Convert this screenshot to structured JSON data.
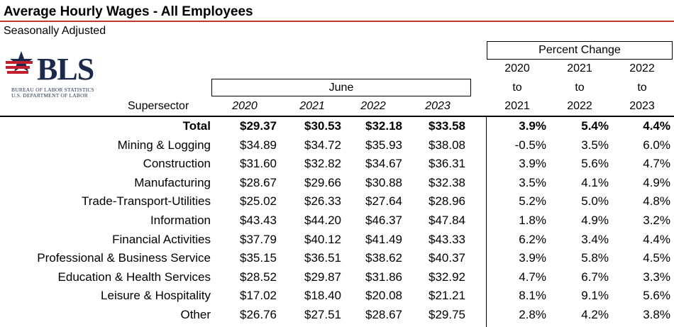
{
  "title": "Average Hourly Wages - All Employees",
  "subtitle": "Seasonally Adjusted",
  "logo": {
    "name": "BLS",
    "line1": "BUREAU OF LABOR STATISTICS",
    "line2": "U.S. DEPARTMENT OF LABOR",
    "colors": {
      "red": "#c0202e",
      "navy": "#1b2a4a"
    }
  },
  "headers": {
    "percent_change": "Percent Change",
    "june": "June",
    "supersector": "Supersector",
    "years": [
      "2020",
      "2021",
      "2022",
      "2023"
    ],
    "changes": [
      {
        "from": "2020",
        "to_word": "to",
        "to": "2021"
      },
      {
        "from": "2021",
        "to_word": "to",
        "to": "2022"
      },
      {
        "from": "2022",
        "to_word": "to",
        "to": "2023"
      }
    ]
  },
  "rows": [
    {
      "sector": "Total",
      "bold": true,
      "wages": [
        "$29.37",
        "$30.53",
        "$32.18",
        "$33.58"
      ],
      "pct": [
        "3.9%",
        "5.4%",
        "4.4%"
      ]
    },
    {
      "sector": "Mining & Logging",
      "wages": [
        "$34.89",
        "$34.72",
        "$35.93",
        "$38.08"
      ],
      "pct": [
        "-0.5%",
        "3.5%",
        "6.0%"
      ]
    },
    {
      "sector": "Construction",
      "wages": [
        "$31.60",
        "$32.82",
        "$34.67",
        "$36.31"
      ],
      "pct": [
        "3.9%",
        "5.6%",
        "4.7%"
      ]
    },
    {
      "sector": "Manufacturing",
      "wages": [
        "$28.67",
        "$29.66",
        "$30.88",
        "$32.38"
      ],
      "pct": [
        "3.5%",
        "4.1%",
        "4.9%"
      ]
    },
    {
      "sector": "Trade-Transport-Utilities",
      "wages": [
        "$25.02",
        "$26.33",
        "$27.64",
        "$28.96"
      ],
      "pct": [
        "5.2%",
        "5.0%",
        "4.8%"
      ]
    },
    {
      "sector": "Information",
      "wages": [
        "$43.43",
        "$44.20",
        "$46.37",
        "$47.84"
      ],
      "pct": [
        "1.8%",
        "4.9%",
        "3.2%"
      ]
    },
    {
      "sector": "Financial Activities",
      "wages": [
        "$37.79",
        "$40.12",
        "$41.49",
        "$43.33"
      ],
      "pct": [
        "6.2%",
        "3.4%",
        "4.4%"
      ]
    },
    {
      "sector": "Professional & Business Service",
      "wages": [
        "$35.15",
        "$36.51",
        "$38.62",
        "$40.37"
      ],
      "pct": [
        "3.9%",
        "5.8%",
        "4.5%"
      ]
    },
    {
      "sector": "Education & Health Services",
      "wages": [
        "$28.52",
        "$29.87",
        "$31.86",
        "$32.92"
      ],
      "pct": [
        "4.7%",
        "6.7%",
        "3.3%"
      ]
    },
    {
      "sector": "Leisure & Hospitality",
      "wages": [
        "$17.02",
        "$18.40",
        "$20.08",
        "$21.21"
      ],
      "pct": [
        "8.1%",
        "9.1%",
        "5.6%"
      ]
    },
    {
      "sector": "Other",
      "wages": [
        "$26.76",
        "$27.51",
        "$28.67",
        "$29.75"
      ],
      "pct": [
        "2.8%",
        "4.2%",
        "3.8%"
      ]
    }
  ]
}
